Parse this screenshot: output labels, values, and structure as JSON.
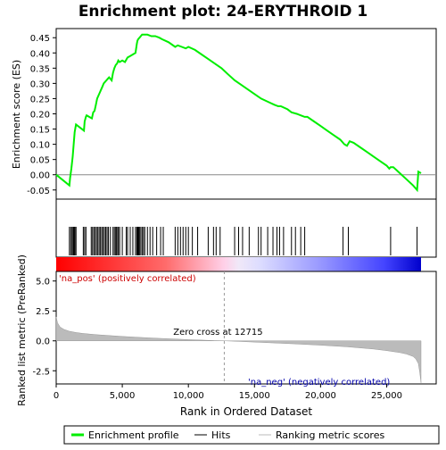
{
  "chart_data": {
    "type": "line",
    "title": "Enrichment plot: 24-ERYTHROID 1",
    "xlabel": "Rank in Ordered Dataset",
    "top_panel": {
      "ylabel": "Enrichment score (ES)",
      "ylim": [
        -0.08,
        0.48
      ],
      "yticks": [
        -0.05,
        0.0,
        0.05,
        0.1,
        0.15,
        0.2,
        0.25,
        0.3,
        0.35,
        0.4,
        0.45
      ],
      "ytick_labels": [
        "-0.05",
        "0.00",
        "0.05",
        "0.10",
        "0.15",
        "0.20",
        "0.25",
        "0.30",
        "0.35",
        "0.40",
        "0.45"
      ],
      "series": [
        {
          "name": "Enrichment profile",
          "color": "#00ee00",
          "x": [
            0,
            1000,
            1050,
            1150,
            1250,
            1320,
            1400,
            1500,
            2100,
            2150,
            2250,
            2300,
            2700,
            2800,
            2900,
            3000,
            3100,
            3200,
            3300,
            3400,
            3500,
            3600,
            3700,
            3800,
            3900,
            4000,
            4200,
            4300,
            4400,
            4500,
            4600,
            4700,
            4800,
            5000,
            5200,
            5400,
            5600,
            5800,
            6000,
            6100,
            6150,
            6200,
            6300,
            6400,
            6500,
            6700,
            6900,
            7200,
            7500,
            7800,
            8000,
            8500,
            9000,
            9200,
            9500,
            9800,
            10000,
            10500,
            11000,
            11500,
            12000,
            12500,
            13000,
            13500,
            14000,
            14500,
            15000,
            15500,
            16000,
            16500,
            16800,
            17000,
            17500,
            17800,
            18200,
            18500,
            18800,
            19000,
            19500,
            20000,
            20500,
            21000,
            21500,
            21800,
            22000,
            22200,
            22500,
            23000,
            23500,
            24000,
            24500,
            25000,
            25200,
            25300,
            25500,
            26000,
            26500,
            27000,
            27300,
            27400,
            27600
          ],
          "y": [
            0.0,
            -0.035,
            -0.01,
            0.02,
            0.06,
            0.1,
            0.14,
            0.165,
            0.145,
            0.175,
            0.19,
            0.195,
            0.185,
            0.205,
            0.21,
            0.23,
            0.25,
            0.26,
            0.27,
            0.28,
            0.29,
            0.3,
            0.305,
            0.31,
            0.315,
            0.32,
            0.31,
            0.335,
            0.35,
            0.36,
            0.365,
            0.375,
            0.37,
            0.375,
            0.37,
            0.385,
            0.39,
            0.395,
            0.4,
            0.43,
            0.44,
            0.445,
            0.45,
            0.455,
            0.46,
            0.46,
            0.46,
            0.455,
            0.455,
            0.45,
            0.445,
            0.435,
            0.42,
            0.425,
            0.42,
            0.415,
            0.42,
            0.41,
            0.395,
            0.38,
            0.365,
            0.35,
            0.33,
            0.31,
            0.295,
            0.28,
            0.265,
            0.25,
            0.24,
            0.23,
            0.225,
            0.225,
            0.215,
            0.205,
            0.2,
            0.195,
            0.19,
            0.19,
            0.175,
            0.16,
            0.145,
            0.13,
            0.115,
            0.1,
            0.095,
            0.11,
            0.105,
            0.09,
            0.075,
            0.06,
            0.045,
            0.03,
            0.02,
            0.025,
            0.025,
            0.005,
            -0.015,
            -0.035,
            -0.05,
            0.01,
            0.005
          ]
        }
      ]
    },
    "hits": [
      1000,
      1100,
      1200,
      1280,
      1350,
      1420,
      1500,
      2050,
      2150,
      2250,
      2650,
      2750,
      2850,
      2950,
      3050,
      3150,
      3250,
      3350,
      3450,
      3550,
      3650,
      3750,
      3850,
      3950,
      4100,
      4300,
      4400,
      4500,
      4550,
      4650,
      4700,
      4800,
      5000,
      5300,
      5400,
      5600,
      5800,
      6000,
      6100,
      6150,
      6200,
      6250,
      6300,
      6400,
      6500,
      6600,
      6700,
      6900,
      7100,
      7300,
      7600,
      7900,
      8100,
      9000,
      9200,
      9400,
      9600,
      9800,
      10000,
      10300,
      10700,
      11500,
      11900,
      12100,
      12400,
      13500,
      13800,
      14100,
      14600,
      15300,
      15500,
      16000,
      16400,
      16700,
      16900,
      17200,
      17800,
      18100,
      18500,
      18800,
      21700,
      22100,
      25300,
      27300
    ],
    "bottom_panel": {
      "ylabel": "Ranked list metric (PreRanked)",
      "ylim": [
        -3.6,
        5.8
      ],
      "yticks": [
        -2.5,
        0.0,
        2.5,
        5.0
      ],
      "ytick_labels": [
        "-2.5",
        "0.0",
        "2.5",
        "5.0"
      ],
      "metric_x": [
        0,
        100,
        300,
        600,
        1000,
        1500,
        2000,
        3000,
        4000,
        5000,
        6000,
        7000,
        8000,
        9000,
        10000,
        11000,
        12000,
        12715,
        14000,
        16000,
        18000,
        20000,
        22000,
        24000,
        25000,
        26000,
        26500,
        27000,
        27200,
        27400,
        27500,
        27600
      ],
      "metric_y": [
        2.0,
        1.5,
        1.15,
        0.95,
        0.8,
        0.7,
        0.62,
        0.52,
        0.44,
        0.37,
        0.31,
        0.25,
        0.2,
        0.15,
        0.1,
        0.06,
        0.02,
        0.0,
        -0.06,
        -0.15,
        -0.25,
        -0.36,
        -0.5,
        -0.68,
        -0.82,
        -0.98,
        -1.1,
        -1.3,
        -1.5,
        -1.9,
        -2.6,
        -3.5
      ],
      "zero_cross_label": "Zero cross at 12715",
      "zero_cross": 12715,
      "pos_label": "'na_pos' (positively correlated)",
      "neg_label": "'na_neg' (negatively correlated)"
    },
    "xlim": [
      0,
      27600
    ],
    "xticks": [
      0,
      5000,
      10000,
      15000,
      20000,
      25000
    ],
    "xtick_labels": [
      "0",
      "5,000",
      "10,000",
      "15,000",
      "20,000",
      "25,000"
    ],
    "legend": {
      "position": "bottom",
      "entries": [
        {
          "label": "Enrichment profile",
          "color": "#00ee00"
        },
        {
          "label": "Hits",
          "color": "#000000"
        },
        {
          "label": "Ranking metric scores",
          "color": "#bbbbbb"
        }
      ]
    }
  }
}
